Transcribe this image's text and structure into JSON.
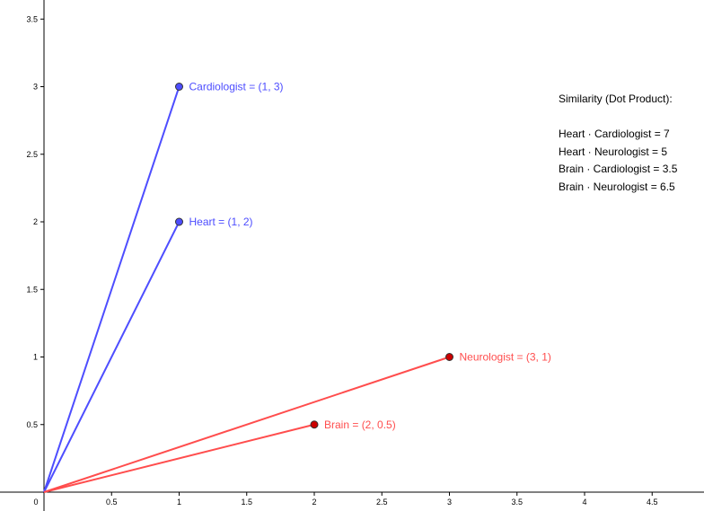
{
  "chart_data": {
    "type": "scatter",
    "xlim": [
      0,
      4.9
    ],
    "ylim": [
      0,
      3.55
    ],
    "grid": false,
    "x_ticks": [
      0.5,
      1,
      1.5,
      2,
      2.5,
      3,
      3.5,
      4,
      4.5
    ],
    "y_ticks": [
      0.5,
      1,
      1.5,
      2,
      2.5,
      3,
      3.5
    ],
    "origin_label": "0",
    "vectors": [
      {
        "label": "Cardiologist = (1, 3)",
        "x": 1,
        "y": 3,
        "color": "#4d4dff",
        "fill": "#4d4dff"
      },
      {
        "label": "Heart = (1, 2)",
        "x": 1,
        "y": 2,
        "color": "#4d4dff",
        "fill": "#4d4dff"
      },
      {
        "label": "Neurologist = (3, 1)",
        "x": 3,
        "y": 1,
        "color": "#ff4d4d",
        "fill": "#cc0000"
      },
      {
        "label": "Brain = (2, 0.5)",
        "x": 2,
        "y": 0.5,
        "color": "#ff4d4d",
        "fill": "#cc0000"
      }
    ],
    "annotation": {
      "title": "Similarity (Dot Product):",
      "lines": [
        "Heart · Cardiologist = 7",
        "Heart · Neurologist = 5",
        "Brain · Cardiologist = 3.5",
        "Brain · Neurologist = 6.5"
      ]
    }
  }
}
